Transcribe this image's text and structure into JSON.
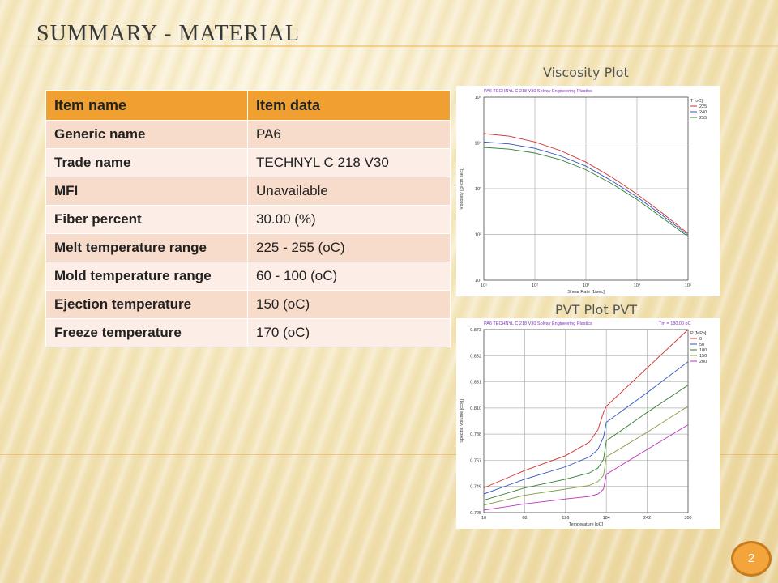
{
  "slide": {
    "title": "SUMMARY - MATERIAL",
    "page_number": "2"
  },
  "table": {
    "headers": [
      "Item name",
      "Item data"
    ],
    "rows": [
      [
        "Generic name",
        "PA6"
      ],
      [
        "Trade name",
        "TECHNYL C 218 V30"
      ],
      [
        "MFI",
        "Unavailable"
      ],
      [
        "Fiber percent",
        "30.00 (%)"
      ],
      [
        "Melt temperature range",
        "225 - 255 (oC)"
      ],
      [
        "Mold temperature range",
        "60 - 100 (oC)"
      ],
      [
        "Ejection temperature",
        "150 (oC)"
      ],
      [
        "Freeze temperature",
        "170 (oC)"
      ]
    ]
  },
  "viscosity_plot": {
    "caption": "Viscosity Plot",
    "header": "PA6   TECHNYL C 218 V30   Solvay Engineering Plastics",
    "xlabel": "Shear Rate [1/sec]",
    "ylabel": "Viscosity [g/(cm sec)]",
    "legend_title": "T [oC]",
    "x_ticks": [
      "10¹",
      "10²",
      "10³",
      "10⁴",
      "10⁵"
    ],
    "y_ticks": [
      "10⁵",
      "10⁴",
      "10³",
      "10²",
      "10¹"
    ],
    "colors": [
      "#d03030",
      "#3050c0",
      "#308030"
    ]
  },
  "pvt_plot": {
    "caption": "PVT Plot PVT",
    "header": "PA6   TECHNYL C 218 V30   Solvay Engineering Plastics",
    "tm_label": "Tm = 180.00 oC",
    "xlabel": "Temperature [oC]",
    "ylabel": "Specific Volume [cc/g]",
    "legend_title": "P [MPa]",
    "x_ticks": [
      "10",
      "68",
      "126",
      "184",
      "242",
      "300"
    ],
    "y_ticks": [
      "0.873",
      "0.852",
      "0.831",
      "0.810",
      "0.788",
      "0.767",
      "0.746",
      "0.725"
    ],
    "colors": [
      "#d03030",
      "#3050c0",
      "#308030",
      "#80a040",
      "#c030c0"
    ]
  },
  "chart_data": [
    {
      "type": "line",
      "title": "PA6   TECHNYL C 218 V30   Solvay Engineering Plastics",
      "xlabel": "Shear Rate [1/sec]",
      "ylabel": "Viscosity [g/(cm sec)]",
      "x_scale": "log",
      "y_scale": "log",
      "xlim": [
        10,
        100000
      ],
      "ylim": [
        10,
        100000
      ],
      "grid": true,
      "legend": "top-right",
      "x": [
        10,
        31.6,
        100,
        316,
        1000,
        3160,
        10000,
        31600,
        100000
      ],
      "series": [
        {
          "name": "225",
          "values": [
            16000,
            14000,
            10500,
            6800,
            3800,
            1800,
            760,
            290,
            105
          ]
        },
        {
          "name": "240",
          "values": [
            10500,
            9500,
            7600,
            5200,
            3100,
            1500,
            660,
            260,
            97
          ]
        },
        {
          "name": "255",
          "values": [
            8000,
            7300,
            6000,
            4300,
            2600,
            1300,
            580,
            230,
            90
          ]
        }
      ]
    },
    {
      "type": "line",
      "title": "PA6   TECHNYL C 218 V30   Solvay Engineering Plastics",
      "xlabel": "Temperature [oC]",
      "ylabel": "Specific Volume [cc/g]",
      "xlim": [
        10,
        300
      ],
      "ylim": [
        0.725,
        0.873
      ],
      "grid": true,
      "legend": "top-right",
      "x": [
        10,
        68,
        126,
        160,
        172,
        180,
        184,
        242,
        300
      ],
      "series": [
        {
          "name": "0",
          "values": [
            0.745,
            0.759,
            0.771,
            0.782,
            0.792,
            0.806,
            0.811,
            0.842,
            0.873
          ]
        },
        {
          "name": "50",
          "values": [
            0.74,
            0.752,
            0.762,
            0.77,
            0.776,
            0.786,
            0.798,
            0.822,
            0.847
          ]
        },
        {
          "name": "100",
          "values": [
            0.735,
            0.745,
            0.752,
            0.757,
            0.761,
            0.768,
            0.783,
            0.806,
            0.828
          ]
        },
        {
          "name": "150",
          "values": [
            0.731,
            0.739,
            0.744,
            0.747,
            0.75,
            0.755,
            0.77,
            0.79,
            0.811
          ]
        },
        {
          "name": "200",
          "values": [
            0.727,
            0.732,
            0.736,
            0.738,
            0.74,
            0.744,
            0.756,
            0.776,
            0.796
          ]
        }
      ]
    }
  ]
}
